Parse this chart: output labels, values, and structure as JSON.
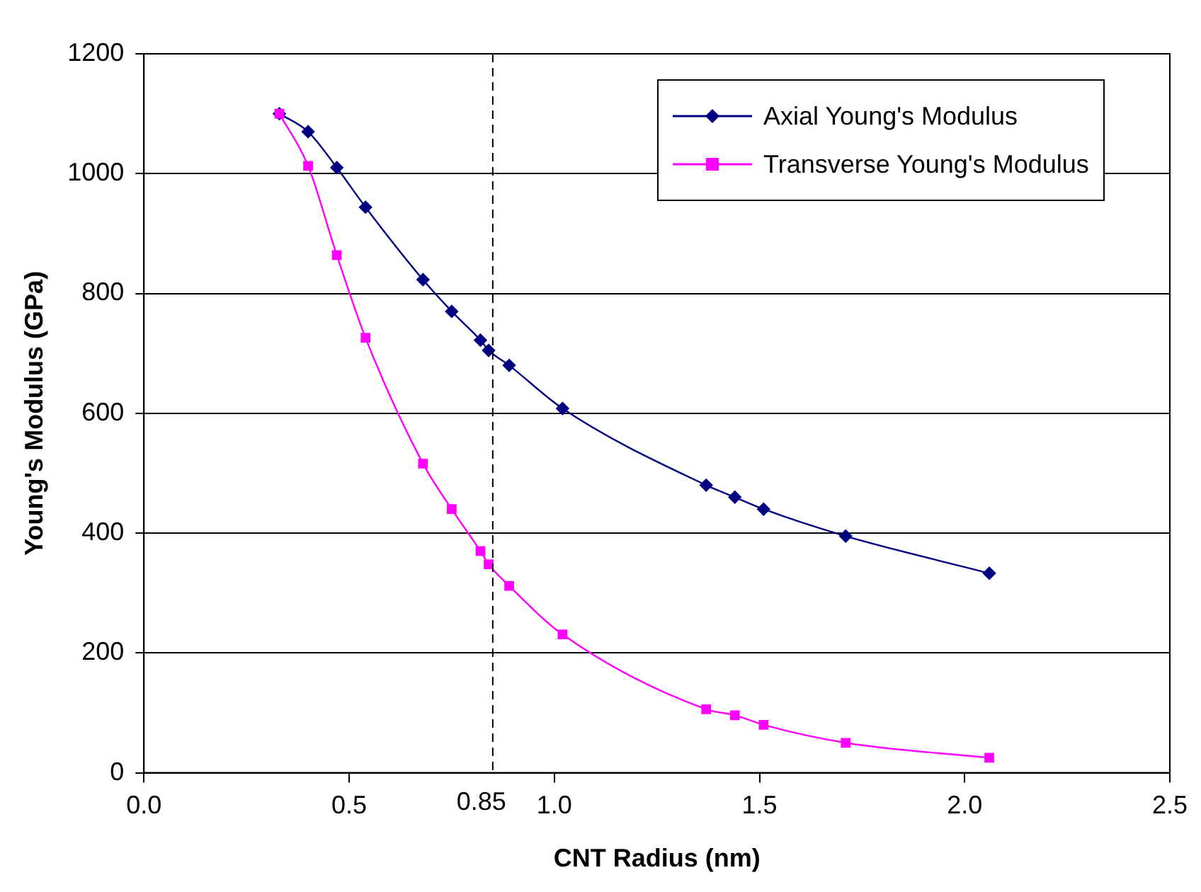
{
  "chart_data": {
    "type": "line",
    "xlabel": "CNT Radius (nm)",
    "ylabel": "Young's Modulus (GPa)",
    "x": [
      0.33,
      0.4,
      0.47,
      0.54,
      0.68,
      0.75,
      0.82,
      0.84,
      0.89,
      1.02,
      1.37,
      1.44,
      1.51,
      1.71,
      2.06
    ],
    "series": [
      {
        "name": "Axial Young's Modulus",
        "color": "#000080",
        "marker": "diamond",
        "values": [
          1100,
          1070,
          1010,
          944,
          823,
          770,
          722,
          705,
          680,
          608,
          480,
          460,
          440,
          395,
          333
        ]
      },
      {
        "name": "Transverse Young's Modulus",
        "color": "#ff00ff",
        "marker": "square",
        "values": [
          1100,
          1013,
          864,
          726,
          516,
          440,
          370,
          348,
          312,
          231,
          106,
          96,
          80,
          50,
          25
        ]
      }
    ],
    "xlim": [
      0,
      2.5
    ],
    "xticks": [
      {
        "value": 0,
        "label": "0.0"
      },
      0.5,
      {
        "value": 1,
        "label": "1.0"
      },
      1.5,
      {
        "value": 2,
        "label": "2.0"
      },
      2.5
    ],
    "ylim": [
      0,
      1200
    ],
    "yticks": [
      0,
      200,
      400,
      600,
      800,
      1000,
      1200
    ],
    "ref_lines": [
      {
        "axis": "x",
        "value": 0.85,
        "label": "0.85",
        "color": "#000000",
        "line_style": "dashed"
      }
    ],
    "grid": "y",
    "legend": "top right",
    "line_style": "solid"
  }
}
